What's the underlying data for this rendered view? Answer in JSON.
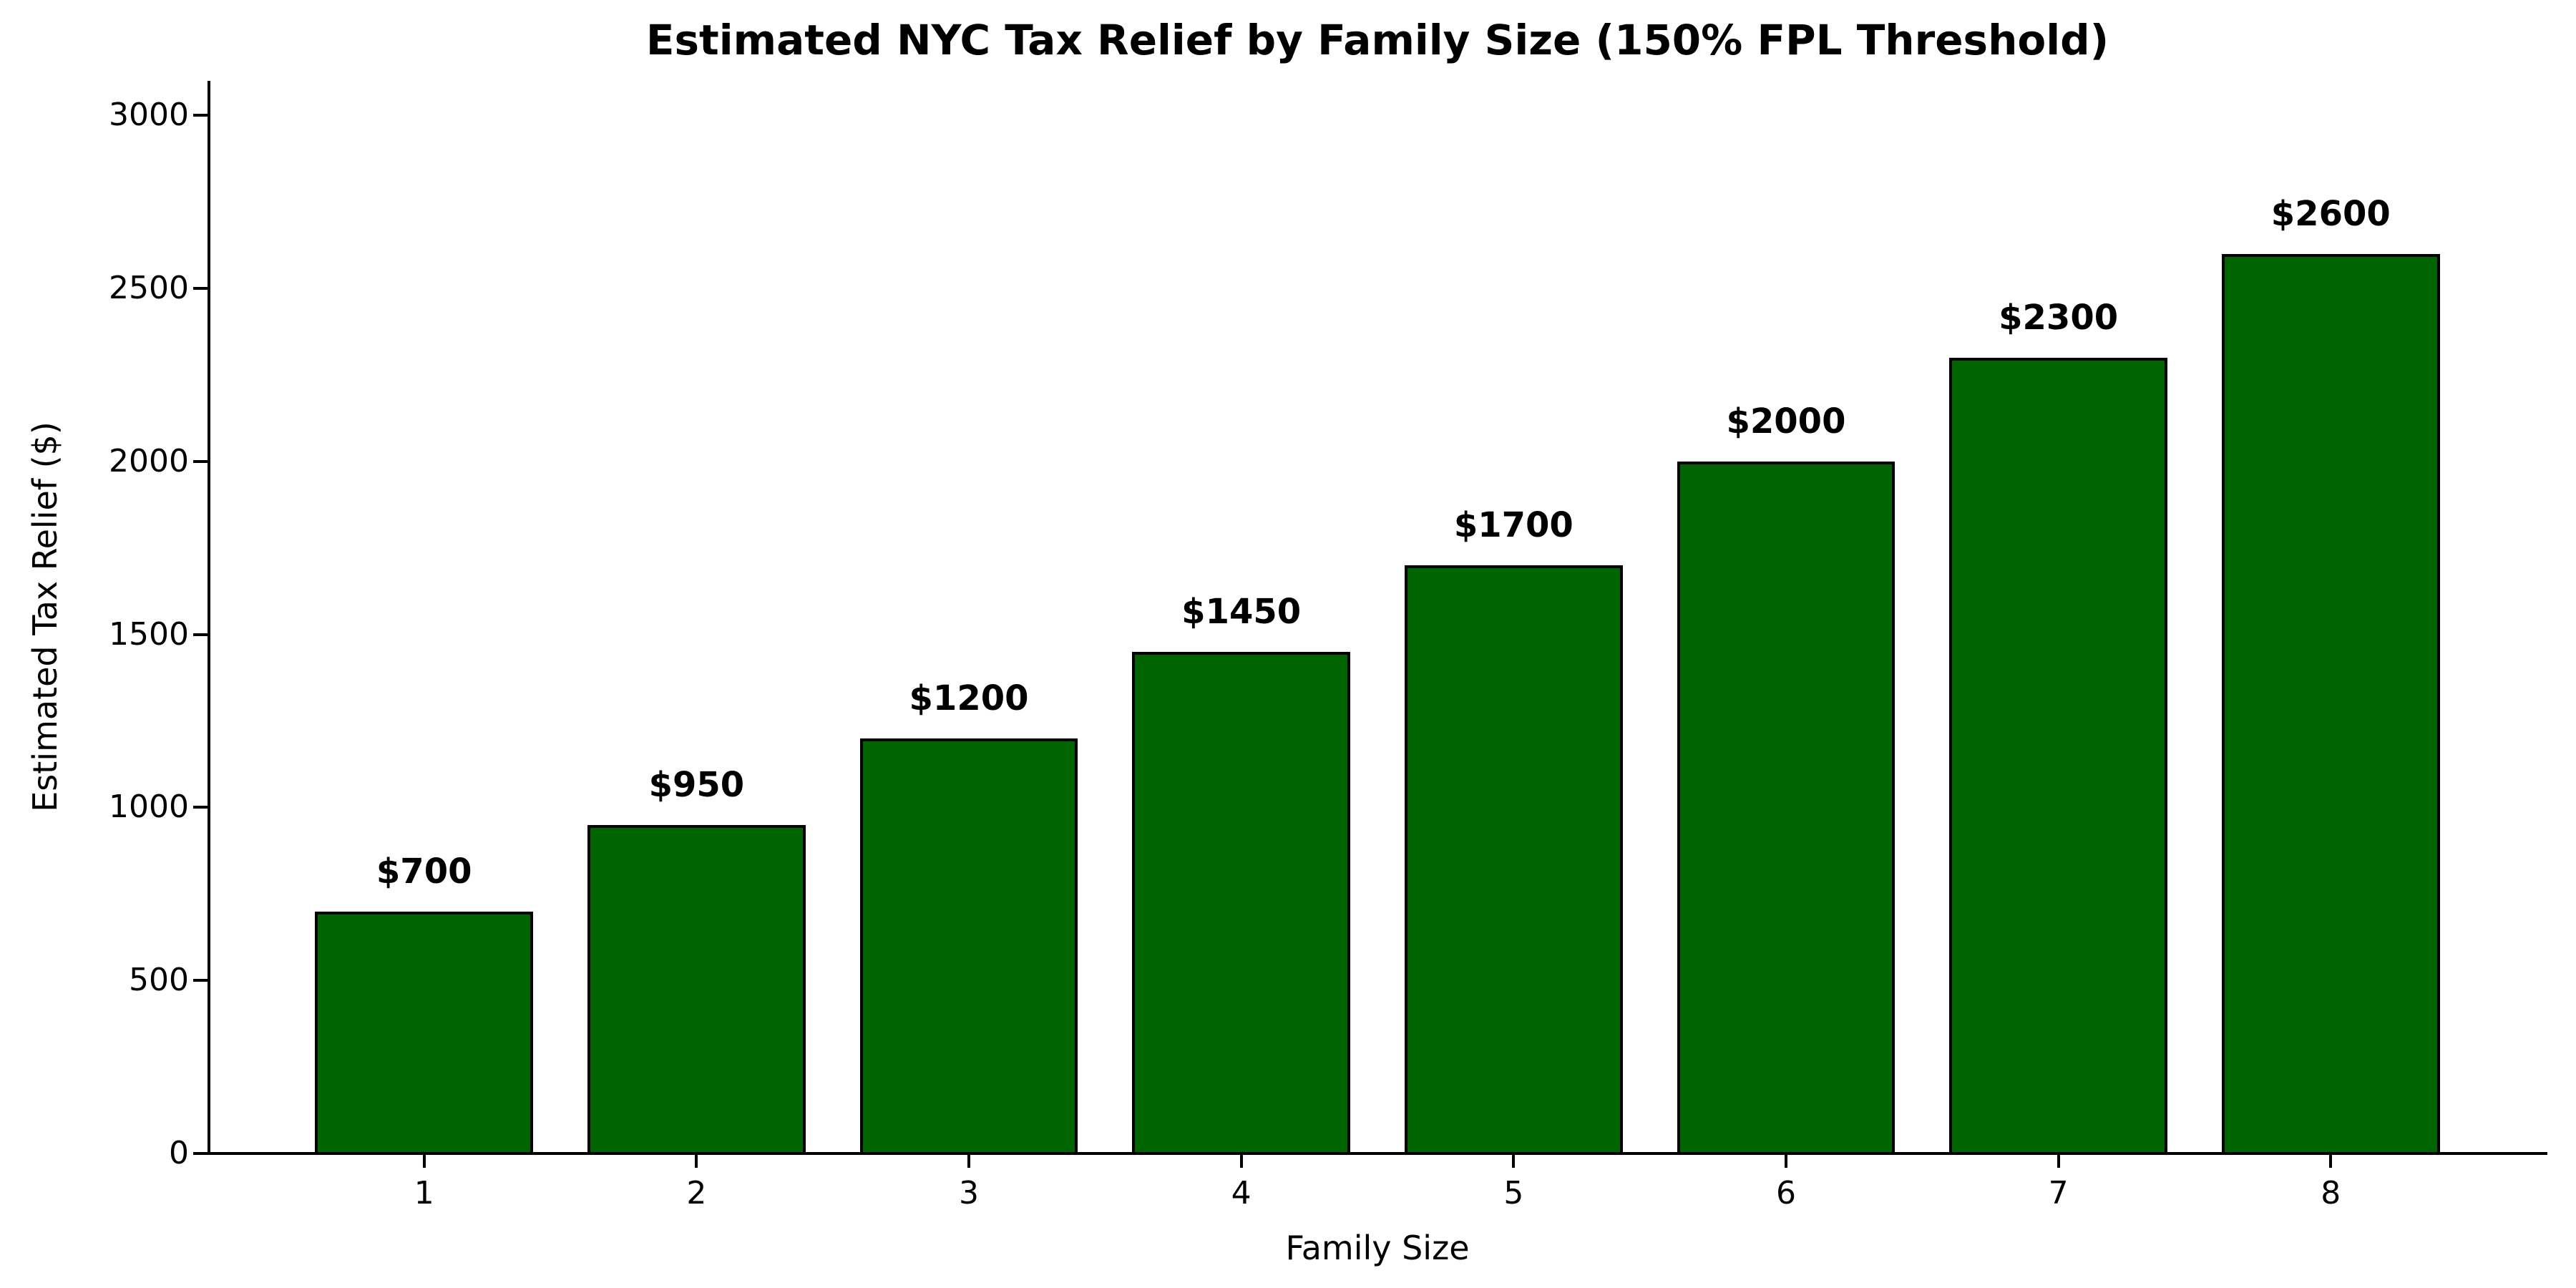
{
  "chart_data": {
    "type": "bar",
    "title": "Estimated NYC Tax Relief by Family Size (150% FPL Threshold)",
    "xlabel": "Family Size",
    "ylabel": "Estimated Tax Relief ($)",
    "categories": [
      "1",
      "2",
      "3",
      "4",
      "5",
      "6",
      "7",
      "8"
    ],
    "values": [
      700,
      950,
      1200,
      1450,
      1700,
      2000,
      2300,
      2600
    ],
    "bar_labels": [
      "$700",
      "$950",
      "$1200",
      "$1450",
      "$1700",
      "$2000",
      "$2300",
      "$2600"
    ],
    "yticks": [
      0,
      500,
      1000,
      1500,
      2000,
      2500,
      3000
    ],
    "ylim": [
      0,
      3100
    ],
    "xlim": [
      0.21,
      8.79
    ],
    "bar_width_frac": 0.8,
    "bar_color": "#006400",
    "bar_edge_color": "#000000",
    "text_color": "#000000",
    "background": "#ffffff",
    "grid": false,
    "legend": null
  }
}
